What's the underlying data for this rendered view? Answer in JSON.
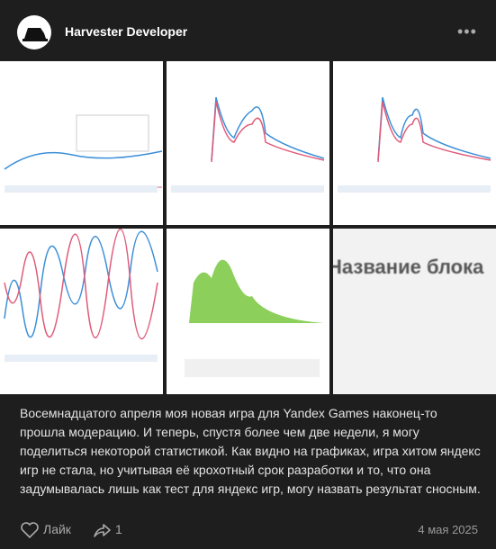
{
  "header": {
    "author": "Harvester Developer"
  },
  "gallery": {
    "tile_text": "Название блока"
  },
  "post": {
    "text": "Восемнадцатого апреля моя новая игра для Yandex Games наконец-то прошла модерацию. И теперь, спустя более чем две недели, я могу поделиться некоторой статистикой. Как видно на графиках, игра хитом яндекс игр не стала, но учитывая её крохотный срок разработки и то, что она задумывалась лишь как тест для яндекс игр, могу назвать результат сносным."
  },
  "footer": {
    "like_label": "Лайк",
    "share_count": "1",
    "date": "4 мая 2025"
  }
}
